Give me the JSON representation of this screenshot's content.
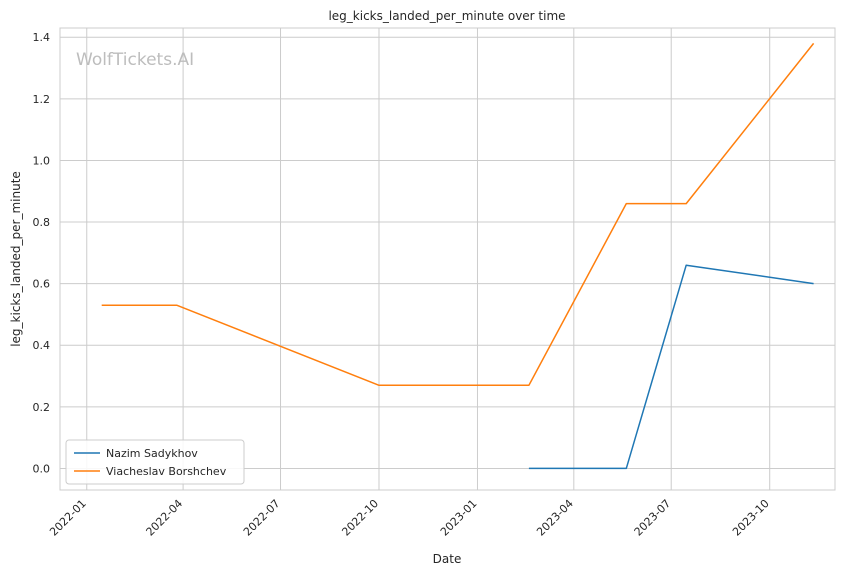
{
  "chart_data": {
    "type": "line",
    "title": "leg_kicks_landed_per_minute over time",
    "xlabel": "Date",
    "ylabel": "leg_kicks_landed_per_minute",
    "watermark": "WolfTickets.AI",
    "x_ticks": [
      "2022-01",
      "2022-04",
      "2022-07",
      "2022-10",
      "2023-01",
      "2023-04",
      "2023-07",
      "2023-10"
    ],
    "y_ticks": [
      "0.0",
      "0.2",
      "0.4",
      "0.6",
      "0.8",
      "1.0",
      "1.2",
      "1.4"
    ],
    "xlim": [
      "2021-12-07",
      "2023-12-01"
    ],
    "ylim": [
      -0.07,
      1.43
    ],
    "grid": true,
    "legend_position": "lower-left",
    "series": [
      {
        "name": "Nazim Sadykhov",
        "color": "#1f77b4",
        "points": [
          {
            "x": "2023-02-18",
            "y": 0.0
          },
          {
            "x": "2023-05-20",
            "y": 0.0
          },
          {
            "x": "2023-07-15",
            "y": 0.66
          },
          {
            "x": "2023-11-11",
            "y": 0.6
          }
        ]
      },
      {
        "name": "Viacheslav Borshchev",
        "color": "#ff7f0e",
        "points": [
          {
            "x": "2022-01-15",
            "y": 0.53
          },
          {
            "x": "2022-03-26",
            "y": 0.53
          },
          {
            "x": "2022-10-01",
            "y": 0.27
          },
          {
            "x": "2023-02-18",
            "y": 0.27
          },
          {
            "x": "2023-05-20",
            "y": 0.86
          },
          {
            "x": "2023-07-15",
            "y": 0.86
          },
          {
            "x": "2023-11-11",
            "y": 1.38
          }
        ]
      }
    ]
  }
}
